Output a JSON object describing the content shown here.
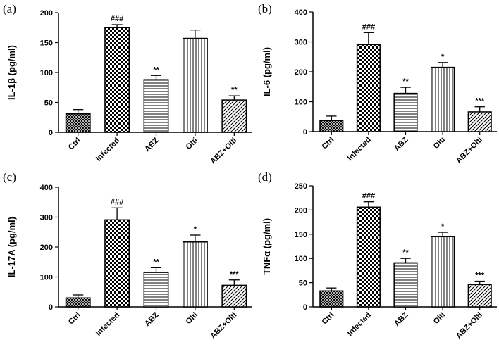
{
  "chart_data": [
    {
      "type": "bar",
      "panel_label": "(a)",
      "ylabel": "IL-1β (pg/ml)",
      "categories": [
        "Ctrl",
        "Infected",
        "ABZ",
        "Olti",
        "ABZ+Olti"
      ],
      "values": [
        31,
        175,
        88,
        157,
        54
      ],
      "errors": [
        7,
        5,
        7,
        14,
        7
      ],
      "significance": [
        "",
        "###",
        "**",
        "",
        "**"
      ],
      "ylim": [
        0,
        200
      ],
      "yticks": [
        0,
        50,
        100,
        150,
        200
      ],
      "patterns": [
        "crosshatch",
        "checker",
        "hlines",
        "vlines",
        "diag"
      ]
    },
    {
      "type": "bar",
      "panel_label": "(b)",
      "ylabel": "IL-6 (pg/ml)",
      "categories": [
        "Ctrl",
        "Infected",
        "ABZ",
        "Olti",
        "ABZ+Olti"
      ],
      "values": [
        37,
        291,
        128,
        215,
        66
      ],
      "errors": [
        15,
        40,
        20,
        16,
        17
      ],
      "significance": [
        "",
        "###",
        "**",
        "*",
        "***"
      ],
      "ylim": [
        0,
        400
      ],
      "yticks": [
        0,
        100,
        200,
        300,
        400
      ],
      "patterns": [
        "crosshatch",
        "checker",
        "hlines",
        "vlines",
        "diag"
      ]
    },
    {
      "type": "bar",
      "panel_label": "(c)",
      "ylabel": "IL-17A (pg/ml)",
      "categories": [
        "Ctrl",
        "Infected",
        "ABZ",
        "Olti",
        "ABZ+Olti"
      ],
      "values": [
        30,
        291,
        115,
        217,
        72
      ],
      "errors": [
        10,
        40,
        16,
        23,
        18
      ],
      "significance": [
        "",
        "###",
        "**",
        "*",
        "***"
      ],
      "ylim": [
        0,
        400
      ],
      "yticks": [
        0,
        100,
        200,
        300,
        400
      ],
      "patterns": [
        "crosshatch",
        "checker",
        "hlines",
        "vlines",
        "diag"
      ]
    },
    {
      "type": "bar",
      "panel_label": "(d)",
      "ylabel": "TNFα (pg/ml)",
      "categories": [
        "Ctrl",
        "Infected",
        "ABZ",
        "Olti",
        "ABZ+Olti"
      ],
      "values": [
        33,
        206,
        91,
        145,
        46
      ],
      "errors": [
        6,
        11,
        9,
        9,
        7
      ],
      "significance": [
        "",
        "###",
        "**",
        "*",
        "***"
      ],
      "ylim": [
        0,
        250
      ],
      "yticks": [
        0,
        50,
        100,
        150,
        200,
        250
      ],
      "patterns": [
        "crosshatch",
        "checker",
        "hlines",
        "vlines",
        "diag"
      ]
    }
  ]
}
